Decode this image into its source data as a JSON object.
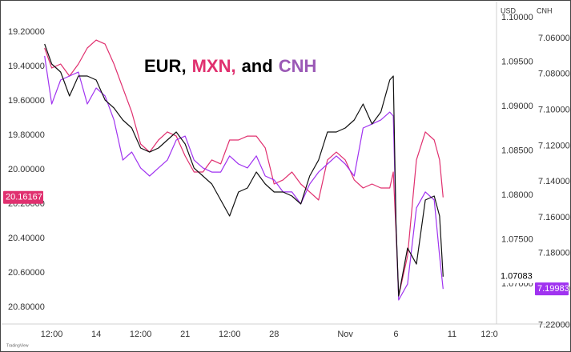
{
  "chart_data": {
    "type": "line",
    "title_parts": [
      {
        "text": "EUR,",
        "color": "#000000"
      },
      {
        "text": "MXN,",
        "color": "#e0306f"
      },
      {
        "text": "and",
        "color": "#000000"
      },
      {
        "text": "CNH",
        "color": "#9b59b6"
      }
    ],
    "y2_header": "USD",
    "y3_header": "CNH",
    "watermark": "TradingView",
    "x": [
      7.1,
      7.5,
      8,
      8.5,
      9,
      9.5,
      10,
      10.5,
      11,
      11.5,
      12,
      12.5,
      13,
      13.5,
      14,
      14.5,
      15,
      15.5,
      16,
      16.5,
      17,
      17.5,
      18,
      18.5,
      19,
      19.5,
      20,
      20.5,
      21,
      21.5,
      22,
      22.5,
      23,
      23.5,
      24,
      24.5,
      25,
      25.5,
      26,
      26.5,
      26.7,
      26.85,
      27,
      27.5,
      28,
      28.5,
      29,
      29.3,
      29.5
    ],
    "xlim": [
      7.07,
      32.5
    ],
    "xticks": [
      {
        "value": 7.5,
        "label": "12:00"
      },
      {
        "value": 10,
        "label": "14"
      },
      {
        "value": 12.5,
        "label": "12:00"
      },
      {
        "value": 15,
        "label": "21"
      },
      {
        "value": 17.5,
        "label": "12:00"
      },
      {
        "value": 20,
        "label": "28"
      },
      {
        "value": 24,
        "label": "Nov"
      },
      {
        "value": 26.85,
        "label": "6"
      },
      {
        "value": 30,
        "label": "11"
      },
      {
        "value": 32.1,
        "label": "12:0"
      }
    ],
    "ylim": [
      20.898,
      19.037
    ],
    "yticks": [
      {
        "value": 19.2,
        "label": "19.20000"
      },
      {
        "value": 19.4,
        "label": "19.40000"
      },
      {
        "value": 19.6,
        "label": "19.60000"
      },
      {
        "value": 19.8,
        "label": "19.80000"
      },
      {
        "value": 20.0,
        "label": "20.00000"
      },
      {
        "value": 20.2,
        "label": "20.20000"
      },
      {
        "value": 20.4,
        "label": "20.40000"
      },
      {
        "value": 20.6,
        "label": "20.60000"
      },
      {
        "value": 20.8,
        "label": "20.80000"
      }
    ],
    "y2lim": [
      1.0655,
      1.10153
    ],
    "y2ticks": [
      {
        "value": 1.1,
        "label": "1.10000"
      },
      {
        "value": 1.095,
        "label": "1.09500"
      },
      {
        "value": 1.09,
        "label": "1.09000"
      },
      {
        "value": 1.085,
        "label": "1.08500"
      },
      {
        "value": 1.08,
        "label": "1.08000"
      },
      {
        "value": 1.075,
        "label": "1.07500"
      },
      {
        "value": 1.07,
        "label": "1.07000"
      }
    ],
    "y3lim": [
      7.2194,
      7.0408
    ],
    "y3ticks": [
      {
        "value": 7.06,
        "label": "7.06000"
      },
      {
        "value": 7.08,
        "label": "7.08000"
      },
      {
        "value": 7.1,
        "label": "7.10000"
      },
      {
        "value": 7.12,
        "label": "7.12000"
      },
      {
        "value": 7.14,
        "label": "7.14000"
      },
      {
        "value": 7.16,
        "label": "7.16000"
      },
      {
        "value": 7.18,
        "label": "7.18000"
      },
      {
        "value": 7.2,
        "label": "7.20000"
      },
      {
        "value": 7.22,
        "label": "7.22000"
      }
    ],
    "series": [
      {
        "axis": "y",
        "color": "#e0306f",
        "last_value_label": "20.16167",
        "values": [
          19.293,
          19.409,
          19.386,
          19.456,
          19.386,
          19.293,
          19.247,
          19.27,
          19.386,
          19.526,
          19.665,
          19.851,
          19.898,
          19.828,
          19.781,
          19.805,
          19.921,
          20.014,
          20.014,
          19.944,
          19.967,
          19.828,
          19.828,
          19.805,
          19.805,
          19.874,
          20.084,
          20.06,
          20.014,
          20.084,
          20.13,
          20.177,
          19.944,
          19.898,
          19.944,
          20.06,
          20.107,
          20.084,
          20.107,
          20.107,
          20.014,
          20.363,
          20.735,
          20.502,
          19.944,
          19.781,
          19.828,
          19.944,
          20.16167
        ]
      },
      {
        "axis": "y3",
        "color": "#a033f0",
        "last_value_label": "7.19983",
        "values": [
          7.0698,
          7.0966,
          7.0832,
          7.081,
          7.0788,
          7.0966,
          7.0877,
          7.0921,
          7.1055,
          7.1279,
          7.1234,
          7.1323,
          7.1368,
          7.1323,
          7.1279,
          7.1167,
          7.1145,
          7.1279,
          7.1323,
          7.1346,
          7.1346,
          7.1256,
          7.1301,
          7.1323,
          7.1256,
          7.1368,
          7.139,
          7.1457,
          7.1457,
          7.1524,
          7.1413,
          7.1346,
          7.1301,
          7.1256,
          7.1301,
          7.1368,
          7.11,
          7.1078,
          7.1055,
          7.1011,
          7.1033,
          7.1636,
          7.206,
          7.1971,
          7.1546,
          7.1457,
          7.1502,
          7.1814,
          7.19983
        ]
      },
      {
        "axis": "y2",
        "color": "#111111",
        "last_value_label": "1.07083",
        "values": [
          1.09703,
          1.09477,
          1.09387,
          1.09117,
          1.09342,
          1.09342,
          1.09297,
          1.09072,
          1.08982,
          1.08847,
          1.08757,
          1.08532,
          1.08486,
          1.08532,
          1.08622,
          1.08712,
          1.08577,
          1.08306,
          1.08216,
          1.08126,
          1.07946,
          1.07766,
          1.08036,
          1.08081,
          1.08261,
          1.08126,
          1.08036,
          1.08036,
          1.07991,
          1.07901,
          1.08216,
          1.08396,
          1.08712,
          1.08712,
          1.08757,
          1.08847,
          1.09027,
          1.08802,
          1.08937,
          1.09297,
          1.09342,
          1.07676,
          1.06865,
          1.07405,
          1.07225,
          1.07946,
          1.07991,
          1.07766,
          1.07083
        ]
      }
    ]
  }
}
